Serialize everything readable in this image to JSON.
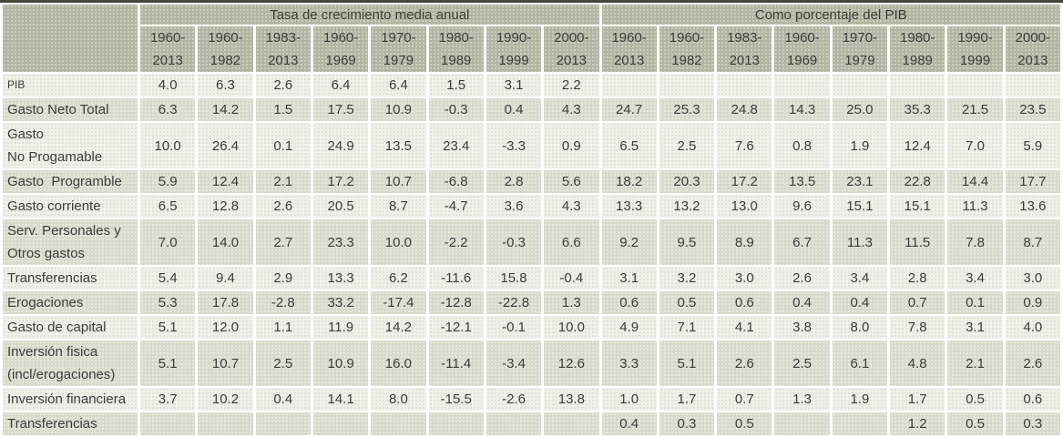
{
  "table": {
    "colors": {
      "top_rule": "#45463c",
      "header_bg": "#b3b5a3",
      "row_light_bg": "#eff0e8",
      "row_dark_bg": "#d9dacc",
      "cell_gap": "#ffffff",
      "text": "#3c3c3c"
    },
    "row_meta": [
      {
        "id": "pib",
        "label_display": "PIB",
        "small": true
      },
      {
        "id": "gasto-neto-total",
        "label_display": "Gasto Neto Total"
      },
      {
        "id": "gasto-no-progamable",
        "label_display": "Gasto\nNo Progamable"
      },
      {
        "id": "gasto-programble",
        "label_display": "Gasto  Programble"
      },
      {
        "id": "gasto-corriente",
        "label_display": "Gasto corriente"
      },
      {
        "id": "serv-personales",
        "label_display": "Serv. Personales y\nOtros gastos"
      },
      {
        "id": "transferencias",
        "label_display": "Transferencias"
      },
      {
        "id": "erogaciones",
        "label_display": "Erogaciones"
      },
      {
        "id": "gasto-de-capital",
        "label_display": "Gasto de capital"
      },
      {
        "id": "inversion-fisica",
        "label_display": "Inversión fisica\n(incl/erogaciones)"
      },
      {
        "id": "inversion-financiera",
        "label_display": "Inversión financiera"
      },
      {
        "id": "transferencias-2",
        "label_display": "Transferencias"
      }
    ]
  },
  "chart_data": {
    "type": "table",
    "column_groups": [
      "Tasa de crecimiento media anual",
      "Como porcentaje del PIB"
    ],
    "periods": [
      "1960-2013",
      "1960-1982",
      "1983-2013",
      "1960-1969",
      "1970-1979",
      "1980-1989",
      "1990-1999",
      "2000-2013"
    ],
    "rows": [
      {
        "label": "PIB",
        "growth": [
          4.0,
          6.3,
          2.6,
          6.4,
          6.4,
          1.5,
          3.1,
          2.2
        ],
        "share_of_pib": [
          null,
          null,
          null,
          null,
          null,
          null,
          null,
          null
        ]
      },
      {
        "label": "Gasto Neto Total",
        "growth": [
          6.3,
          14.2,
          1.5,
          17.5,
          10.9,
          -0.3,
          0.4,
          4.3
        ],
        "share_of_pib": [
          24.7,
          25.3,
          24.8,
          14.3,
          25.0,
          35.3,
          21.5,
          23.5
        ]
      },
      {
        "label": "Gasto No Progamable",
        "growth": [
          10.0,
          26.4,
          0.1,
          24.9,
          13.5,
          23.4,
          -3.3,
          0.9
        ],
        "share_of_pib": [
          6.5,
          2.5,
          7.6,
          0.8,
          1.9,
          12.4,
          7.0,
          5.9
        ]
      },
      {
        "label": "Gasto Programble",
        "growth": [
          5.9,
          12.4,
          2.1,
          17.2,
          10.7,
          -6.8,
          2.8,
          5.6
        ],
        "share_of_pib": [
          18.2,
          20.3,
          17.2,
          13.5,
          23.1,
          22.8,
          14.4,
          17.7
        ]
      },
      {
        "label": "Gasto corriente",
        "growth": [
          6.5,
          12.8,
          2.6,
          20.5,
          8.7,
          -4.7,
          3.6,
          4.3
        ],
        "share_of_pib": [
          13.3,
          13.2,
          13.0,
          9.6,
          15.1,
          15.1,
          11.3,
          13.6
        ]
      },
      {
        "label": "Serv. Personales y Otros gastos",
        "growth": [
          7.0,
          14.0,
          2.7,
          23.3,
          10.0,
          -2.2,
          -0.3,
          6.6
        ],
        "share_of_pib": [
          9.2,
          9.5,
          8.9,
          6.7,
          11.3,
          11.5,
          7.8,
          8.7
        ]
      },
      {
        "label": "Transferencias",
        "growth": [
          5.4,
          9.4,
          2.9,
          13.3,
          6.2,
          -11.6,
          15.8,
          -0.4
        ],
        "share_of_pib": [
          3.1,
          3.2,
          3.0,
          2.6,
          3.4,
          2.8,
          3.4,
          3.0
        ]
      },
      {
        "label": "Erogaciones",
        "growth": [
          5.3,
          17.8,
          -2.8,
          33.2,
          -17.4,
          -12.8,
          -22.8,
          1.3
        ],
        "share_of_pib": [
          0.6,
          0.5,
          0.6,
          0.4,
          0.4,
          0.7,
          0.1,
          0.9
        ]
      },
      {
        "label": "Gasto de capital",
        "growth": [
          5.1,
          12.0,
          1.1,
          11.9,
          14.2,
          -12.1,
          -0.1,
          10.0
        ],
        "share_of_pib": [
          4.9,
          7.1,
          4.1,
          3.8,
          8.0,
          7.8,
          3.1,
          4.0
        ]
      },
      {
        "label": "Inversión fisica (incl/erogaciones)",
        "growth": [
          5.1,
          10.7,
          2.5,
          10.9,
          16.0,
          -11.4,
          -3.4,
          12.6
        ],
        "share_of_pib": [
          3.3,
          5.1,
          2.6,
          2.5,
          6.1,
          4.8,
          2.1,
          2.6
        ]
      },
      {
        "label": "Inversión financiera",
        "growth": [
          3.7,
          10.2,
          0.4,
          14.1,
          8.0,
          -15.5,
          -2.6,
          13.8
        ],
        "share_of_pib": [
          1.0,
          1.7,
          0.7,
          1.3,
          1.9,
          1.7,
          0.5,
          0.6
        ]
      },
      {
        "label": "Transferencias",
        "growth": [
          null,
          null,
          null,
          null,
          null,
          null,
          null,
          null
        ],
        "share_of_pib": [
          0.4,
          0.3,
          0.5,
          null,
          null,
          1.2,
          0.5,
          0.3
        ]
      }
    ]
  }
}
